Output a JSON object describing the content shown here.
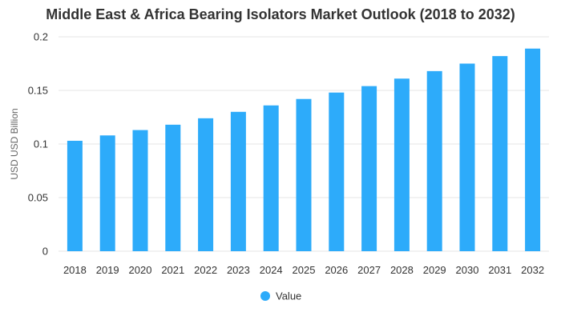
{
  "chart_data": {
    "type": "bar",
    "title": "Middle East & Africa Bearing Isolators Market Outlook (2018 to 2032)",
    "xlabel": "",
    "ylabel": "USD USD Billion",
    "categories": [
      "2018",
      "2019",
      "2020",
      "2021",
      "2022",
      "2023",
      "2024",
      "2025",
      "2026",
      "2027",
      "2028",
      "2029",
      "2030",
      "2031",
      "2032"
    ],
    "series": [
      {
        "name": "Value",
        "values": [
          0.103,
          0.108,
          0.113,
          0.118,
          0.124,
          0.13,
          0.136,
          0.142,
          0.148,
          0.154,
          0.161,
          0.168,
          0.175,
          0.182,
          0.189
        ]
      }
    ],
    "ylim": [
      0,
      0.2
    ],
    "yticks": [
      "0",
      "0.05",
      "0.1",
      "0.15",
      "0.2"
    ],
    "grid": true,
    "legend_position": "bottom-center",
    "bar_color": "#2DABFA",
    "grid_color": "#E6E6E6"
  }
}
